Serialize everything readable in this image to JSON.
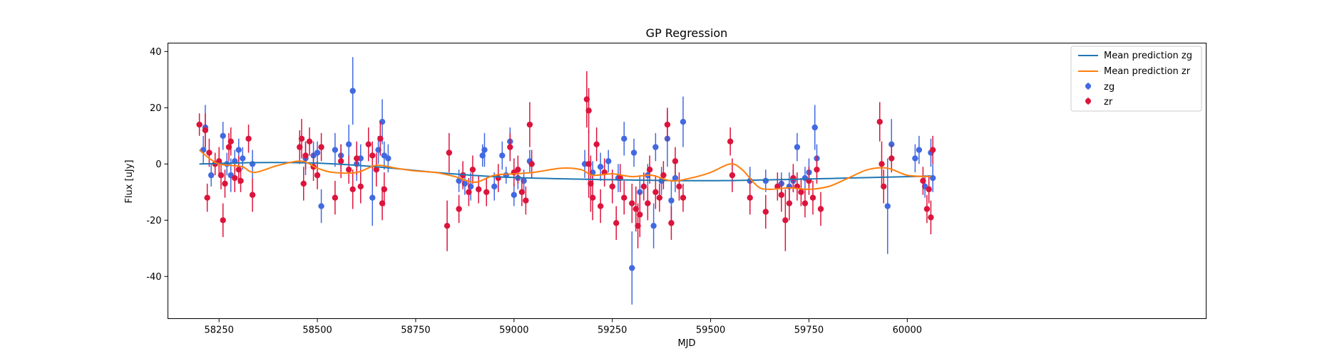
{
  "chart_data": {
    "type": "scatter",
    "title": "GP Regression",
    "xlabel": "MJD",
    "ylabel": "Flux [uJy]",
    "xlim": [
      58120,
      60760
    ],
    "ylim": [
      -55,
      43
    ],
    "xticks": [
      58250,
      58500,
      58750,
      59000,
      59250,
      59500,
      59750,
      60000
    ],
    "yticks": [
      -40,
      -20,
      0,
      20,
      40
    ],
    "grid": false,
    "legend_position": "top-right",
    "legend": [
      "Mean prediction zg",
      "Mean prediction zr",
      "zg",
      "zr"
    ],
    "colors": {
      "zg_line": "#1f77b4",
      "zr_line": "#ff7f0e",
      "zg_points": "#4169e1",
      "zr_points": "#dc143c"
    },
    "series": [
      {
        "name": "Mean prediction zg",
        "kind": "line",
        "x": [
          58200,
          58350,
          58500,
          58650,
          58800,
          58950,
          59100,
          59250,
          59400,
          59550,
          59700,
          59850,
          60000,
          60060
        ],
        "y": [
          0,
          0.5,
          0.3,
          -1.0,
          -3.0,
          -4.5,
          -5.2,
          -5.6,
          -5.9,
          -5.9,
          -5.5,
          -5.0,
          -4.5,
          -4.3
        ]
      },
      {
        "name": "Mean prediction zr",
        "kind": "line",
        "x": [
          58200,
          58225,
          58250,
          58280,
          58310,
          58340,
          58400,
          58460,
          58500,
          58540,
          58600,
          58650,
          58700,
          58750,
          58800,
          58850,
          58900,
          58950,
          59000,
          59050,
          59120,
          59170,
          59200,
          59250,
          59300,
          59350,
          59400,
          59450,
          59500,
          59550,
          59580,
          59620,
          59650,
          59700,
          59750,
          59800,
          59850,
          59900,
          59950,
          60000,
          60060
        ],
        "y": [
          5,
          2,
          0,
          -0.5,
          -1,
          -3,
          -0.5,
          1,
          -1.5,
          -3,
          -3,
          -0.5,
          -1.5,
          -2.5,
          -3,
          -4.5,
          -6.5,
          -4,
          -3.5,
          -3,
          -1.5,
          -2,
          -4,
          -3.5,
          -4.5,
          -4,
          -6,
          -5,
          -3,
          0,
          -2,
          -8,
          -9,
          -8.5,
          -9,
          -8,
          -5,
          -2,
          -1.5,
          -4,
          -4.5
        ]
      },
      {
        "name": "zg",
        "kind": "errorbar",
        "points": [
          [
            58210,
            5,
            5
          ],
          [
            58215,
            13,
            8
          ],
          [
            58230,
            -4,
            4
          ],
          [
            58260,
            10,
            5
          ],
          [
            58270,
            0,
            4
          ],
          [
            58280,
            -4,
            6
          ],
          [
            58290,
            1,
            4
          ],
          [
            58300,
            5,
            4
          ],
          [
            58310,
            2,
            4
          ],
          [
            58335,
            0,
            5
          ],
          [
            58470,
            2,
            6
          ],
          [
            58490,
            3,
            5
          ],
          [
            58500,
            4,
            4
          ],
          [
            58510,
            -15,
            6
          ],
          [
            58545,
            5,
            6
          ],
          [
            58560,
            3,
            4
          ],
          [
            58580,
            7,
            7
          ],
          [
            58590,
            26,
            12
          ],
          [
            58600,
            0,
            6
          ],
          [
            58610,
            2,
            5
          ],
          [
            58640,
            -12,
            10
          ],
          [
            58655,
            5,
            5
          ],
          [
            58665,
            15,
            8
          ],
          [
            58670,
            3,
            5
          ],
          [
            58680,
            2,
            5
          ],
          [
            58860,
            -6,
            4
          ],
          [
            58875,
            -7,
            4
          ],
          [
            58890,
            -8,
            5
          ],
          [
            58920,
            3,
            4
          ],
          [
            58925,
            5,
            6
          ],
          [
            58950,
            -8,
            5
          ],
          [
            58970,
            3,
            5
          ],
          [
            58980,
            -4,
            3
          ],
          [
            58990,
            8,
            5
          ],
          [
            59000,
            -11,
            4
          ],
          [
            59010,
            -5,
            4
          ],
          [
            59025,
            -6,
            4
          ],
          [
            59040,
            1,
            4
          ],
          [
            59180,
            0,
            5
          ],
          [
            59200,
            -3,
            4
          ],
          [
            59220,
            -1,
            5
          ],
          [
            59240,
            1,
            4
          ],
          [
            59265,
            -5,
            5
          ],
          [
            59280,
            9,
            6
          ],
          [
            59300,
            -37,
            13
          ],
          [
            59305,
            4,
            5
          ],
          [
            59320,
            -10,
            6
          ],
          [
            59340,
            -4,
            4
          ],
          [
            59355,
            -22,
            8
          ],
          [
            59360,
            6,
            5
          ],
          [
            59375,
            -6,
            5
          ],
          [
            59390,
            9,
            10
          ],
          [
            59400,
            -13,
            7
          ],
          [
            59410,
            -5,
            5
          ],
          [
            59430,
            15,
            9
          ],
          [
            59600,
            -6,
            5
          ],
          [
            59640,
            -6,
            4
          ],
          [
            59680,
            -7,
            4
          ],
          [
            59700,
            -8,
            5
          ],
          [
            59710,
            -6,
            4
          ],
          [
            59720,
            6,
            5
          ],
          [
            59740,
            -5,
            4
          ],
          [
            59750,
            -3,
            5
          ],
          [
            59765,
            13,
            8
          ],
          [
            59770,
            2,
            5
          ],
          [
            59950,
            -15,
            17
          ],
          [
            59960,
            7,
            9
          ],
          [
            60020,
            2,
            5
          ],
          [
            60030,
            5,
            5
          ],
          [
            60045,
            -8,
            4
          ],
          [
            60060,
            4,
            5
          ],
          [
            60065,
            -5,
            5
          ]
        ]
      },
      {
        "name": "zr",
        "kind": "errorbar",
        "points": [
          [
            58200,
            14,
            4
          ],
          [
            58215,
            12,
            6
          ],
          [
            58220,
            -12,
            5
          ],
          [
            58225,
            4,
            5
          ],
          [
            58240,
            0,
            4
          ],
          [
            58250,
            1,
            5
          ],
          [
            58255,
            -4,
            5
          ],
          [
            58260,
            -20,
            6
          ],
          [
            58265,
            -7,
            5
          ],
          [
            58275,
            6,
            5
          ],
          [
            58280,
            8,
            5
          ],
          [
            58290,
            -5,
            5
          ],
          [
            58300,
            -2,
            5
          ],
          [
            58305,
            -6,
            4
          ],
          [
            58325,
            9,
            5
          ],
          [
            58335,
            -11,
            6
          ],
          [
            58455,
            6,
            6
          ],
          [
            58460,
            9,
            7
          ],
          [
            58465,
            -7,
            6
          ],
          [
            58470,
            3,
            5
          ],
          [
            58480,
            8,
            5
          ],
          [
            58490,
            -1,
            5
          ],
          [
            58500,
            -4,
            5
          ],
          [
            58510,
            6,
            5
          ],
          [
            58545,
            -12,
            6
          ],
          [
            58560,
            1,
            6
          ],
          [
            58580,
            -2,
            5
          ],
          [
            58590,
            -9,
            7
          ],
          [
            58600,
            2,
            6
          ],
          [
            58610,
            -8,
            6
          ],
          [
            58630,
            7,
            6
          ],
          [
            58640,
            3,
            5
          ],
          [
            58650,
            -2,
            6
          ],
          [
            58660,
            9,
            6
          ],
          [
            58665,
            -14,
            6
          ],
          [
            58670,
            -9,
            6
          ],
          [
            58830,
            -22,
            9
          ],
          [
            58835,
            4,
            7
          ],
          [
            58860,
            -16,
            5
          ],
          [
            58870,
            -4,
            5
          ],
          [
            58885,
            -10,
            5
          ],
          [
            58895,
            -2,
            5
          ],
          [
            58910,
            -9,
            5
          ],
          [
            58930,
            -10,
            5
          ],
          [
            58960,
            -5,
            5
          ],
          [
            58990,
            6,
            5
          ],
          [
            59000,
            -3,
            5
          ],
          [
            59010,
            -2,
            5
          ],
          [
            59020,
            -10,
            5
          ],
          [
            59030,
            -13,
            5
          ],
          [
            59040,
            14,
            8
          ],
          [
            59045,
            0,
            5
          ],
          [
            59185,
            23,
            10
          ],
          [
            59190,
            19,
            8
          ],
          [
            59190,
            0,
            12
          ],
          [
            59195,
            -7,
            10
          ],
          [
            59200,
            -12,
            8
          ],
          [
            59210,
            7,
            6
          ],
          [
            59220,
            -15,
            6
          ],
          [
            59230,
            -3,
            5
          ],
          [
            59250,
            -8,
            6
          ],
          [
            59260,
            -21,
            6
          ],
          [
            59270,
            -5,
            5
          ],
          [
            59280,
            -12,
            6
          ],
          [
            59300,
            -14,
            7
          ],
          [
            59310,
            -16,
            8
          ],
          [
            59315,
            -22,
            8
          ],
          [
            59320,
            -18,
            8
          ],
          [
            59330,
            -8,
            5
          ],
          [
            59340,
            -14,
            6
          ],
          [
            59345,
            -2,
            5
          ],
          [
            59360,
            -10,
            6
          ],
          [
            59370,
            -12,
            5
          ],
          [
            59380,
            -4,
            5
          ],
          [
            59390,
            14,
            6
          ],
          [
            59400,
            -21,
            6
          ],
          [
            59410,
            1,
            5
          ],
          [
            59420,
            -8,
            5
          ],
          [
            59430,
            -12,
            5
          ],
          [
            59550,
            8,
            5
          ],
          [
            59555,
            -4,
            6
          ],
          [
            59600,
            -12,
            6
          ],
          [
            59640,
            -17,
            6
          ],
          [
            59670,
            -8,
            5
          ],
          [
            59680,
            -11,
            6
          ],
          [
            59690,
            -20,
            11
          ],
          [
            59700,
            -14,
            6
          ],
          [
            59710,
            -5,
            5
          ],
          [
            59720,
            -8,
            5
          ],
          [
            59730,
            -10,
            5
          ],
          [
            59740,
            -14,
            5
          ],
          [
            59750,
            -6,
            5
          ],
          [
            59760,
            -12,
            6
          ],
          [
            59770,
            -2,
            5
          ],
          [
            59780,
            -16,
            6
          ],
          [
            59930,
            15,
            7
          ],
          [
            59935,
            0,
            8
          ],
          [
            59940,
            -8,
            6
          ],
          [
            59960,
            2,
            5
          ],
          [
            60040,
            -6,
            5
          ],
          [
            60050,
            -16,
            5
          ],
          [
            60055,
            -9,
            5
          ],
          [
            60060,
            -19,
            6
          ],
          [
            60065,
            5,
            5
          ]
        ]
      }
    ]
  }
}
